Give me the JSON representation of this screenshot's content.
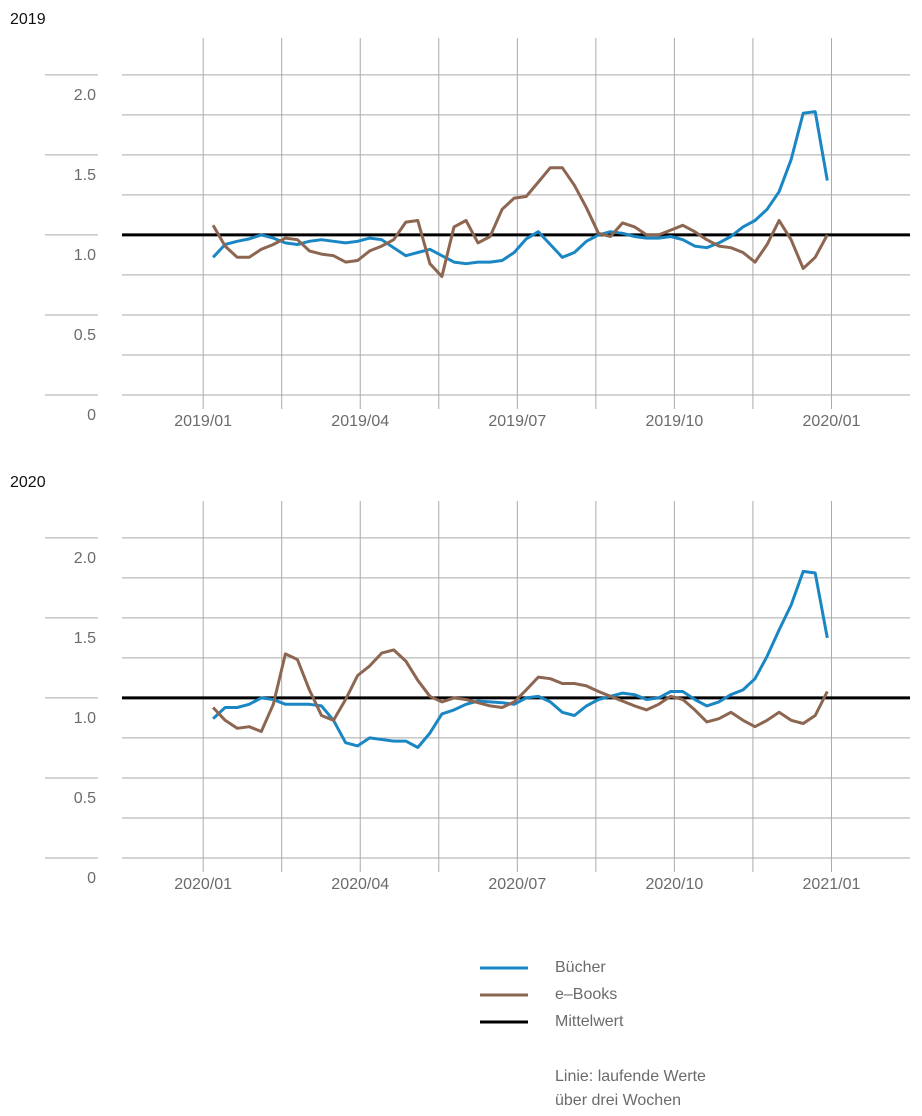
{
  "chart_data": [
    {
      "type": "line",
      "title": "2019",
      "x": [
        1.19,
        1.42,
        1.65,
        1.88,
        2.11,
        2.34,
        2.57,
        2.8,
        3.03,
        3.26,
        3.49,
        3.72,
        3.95,
        4.18,
        4.41,
        4.64,
        4.87,
        5.1,
        5.33,
        5.56,
        5.79,
        6.02,
        6.25,
        6.48,
        6.71,
        6.94,
        7.17,
        7.4,
        7.63,
        7.86,
        8.09,
        8.32,
        8.55,
        8.78,
        9.01,
        9.24,
        9.47,
        9.7,
        9.93,
        10.16,
        10.39,
        10.62,
        10.85,
        11.08,
        11.31,
        11.54,
        11.77,
        12.0,
        12.23,
        12.46,
        12.69,
        12.92
      ],
      "series": [
        {
          "name": "Bücher",
          "color": "#1a87c4",
          "values": [
            0.86,
            0.94,
            0.96,
            0.975,
            1.0,
            0.98,
            0.95,
            0.94,
            0.96,
            0.97,
            0.96,
            0.95,
            0.96,
            0.98,
            0.97,
            0.92,
            0.87,
            0.89,
            0.91,
            0.87,
            0.83,
            0.82,
            0.83,
            0.83,
            0.84,
            0.89,
            0.975,
            1.02,
            0.94,
            0.86,
            0.89,
            0.96,
            1.0,
            1.02,
            1.01,
            0.99,
            0.98,
            0.98,
            0.99,
            0.97,
            0.93,
            0.92,
            0.95,
            0.99,
            1.05,
            1.09,
            1.16,
            1.27,
            1.47,
            1.76,
            1.77,
            1.34
          ]
        },
        {
          "name": "e–Books",
          "color": "#8c6650",
          "values": [
            1.06,
            0.93,
            0.86,
            0.86,
            0.91,
            0.94,
            0.98,
            0.97,
            0.9,
            0.88,
            0.87,
            0.83,
            0.84,
            0.9,
            0.93,
            0.97,
            1.08,
            1.09,
            0.82,
            0.74,
            1.05,
            1.09,
            0.95,
            0.99,
            1.16,
            1.23,
            1.24,
            1.33,
            1.42,
            1.42,
            1.31,
            1.17,
            1.01,
            0.99,
            1.075,
            1.05,
            1.0,
            1.0,
            1.03,
            1.06,
            1.02,
            0.97,
            0.93,
            0.92,
            0.89,
            0.83,
            0.94,
            1.09,
            0.97,
            0.79,
            0.86,
            1.0
          ]
        }
      ],
      "mean_line": {
        "name": "Mittelwert",
        "value": 1,
        "color": "#000000"
      },
      "xlim": [
        -0.55,
        14.5
      ],
      "xticks": [
        {
          "value": 1,
          "label": "2019/01"
        },
        {
          "value": 4,
          "label": "2019/04"
        },
        {
          "value": 7,
          "label": "2019/07"
        },
        {
          "value": 10,
          "label": "2019/10"
        },
        {
          "value": 13,
          "label": "2020/01"
        }
      ],
      "xminor": [
        2.5,
        5.5,
        8.5,
        11.5
      ],
      "ylim": [
        0,
        2.23
      ],
      "yticks": [
        0,
        0.5,
        {
          "value": 1,
          "label": "1.0"
        },
        1.5,
        {
          "value": 2,
          "label": "2.0"
        }
      ],
      "yminor": [
        0.25,
        0.75,
        1.25,
        1.75
      ],
      "grid": true
    },
    {
      "type": "line",
      "title": "2020",
      "x": [
        1.19,
        1.42,
        1.65,
        1.88,
        2.11,
        2.34,
        2.57,
        2.8,
        3.03,
        3.26,
        3.49,
        3.72,
        3.95,
        4.18,
        4.41,
        4.64,
        4.87,
        5.1,
        5.33,
        5.56,
        5.79,
        6.02,
        6.25,
        6.48,
        6.71,
        6.94,
        7.17,
        7.4,
        7.63,
        7.86,
        8.09,
        8.32,
        8.55,
        8.78,
        9.01,
        9.24,
        9.47,
        9.7,
        9.93,
        10.16,
        10.39,
        10.62,
        10.85,
        11.08,
        11.31,
        11.54,
        11.77,
        12.0,
        12.23,
        12.46,
        12.69,
        12.92
      ],
      "series": [
        {
          "name": "Bücher",
          "color": "#1a87c4",
          "values": [
            0.87,
            0.94,
            0.94,
            0.96,
            1.0,
            0.99,
            0.96,
            0.96,
            0.96,
            0.95,
            0.86,
            0.72,
            0.7,
            0.75,
            0.74,
            0.73,
            0.73,
            0.69,
            0.78,
            0.9,
            0.925,
            0.96,
            0.98,
            0.975,
            0.97,
            0.96,
            1.0,
            1.01,
            0.975,
            0.91,
            0.89,
            0.95,
            0.99,
            1.01,
            1.03,
            1.02,
            0.99,
            1.0,
            1.04,
            1.04,
            0.99,
            0.95,
            0.975,
            1.02,
            1.05,
            1.12,
            1.26,
            1.425,
            1.58,
            1.79,
            1.78,
            1.375
          ]
        },
        {
          "name": "e–Books",
          "color": "#8c6650",
          "values": [
            0.94,
            0.86,
            0.81,
            0.82,
            0.79,
            0.96,
            1.275,
            1.24,
            1.05,
            0.89,
            0.86,
            0.99,
            1.14,
            1.2,
            1.28,
            1.3,
            1.23,
            1.11,
            1.01,
            0.975,
            1.0,
            0.99,
            0.97,
            0.95,
            0.94,
            0.975,
            1.05,
            1.13,
            1.12,
            1.09,
            1.09,
            1.075,
            1.04,
            1.01,
            0.98,
            0.95,
            0.925,
            0.96,
            1.01,
            0.99,
            0.925,
            0.85,
            0.87,
            0.91,
            0.86,
            0.82,
            0.86,
            0.91,
            0.86,
            0.84,
            0.89,
            1.04
          ]
        }
      ],
      "mean_line": {
        "name": "Mittelwert",
        "value": 1,
        "color": "#000000"
      },
      "xlim": [
        -0.55,
        14.5
      ],
      "xticks": [
        {
          "value": 1,
          "label": "2020/01"
        },
        {
          "value": 4,
          "label": "2020/04"
        },
        {
          "value": 7,
          "label": "2020/07"
        },
        {
          "value": 10,
          "label": "2020/10"
        },
        {
          "value": 13,
          "label": "2021/01"
        }
      ],
      "xminor": [
        2.5,
        5.5,
        8.5,
        11.5
      ],
      "ylim": [
        0,
        2.23
      ],
      "yticks": [
        0,
        0.5,
        {
          "value": 1,
          "label": "1.0"
        },
        1.5,
        {
          "value": 2,
          "label": "2.0"
        }
      ],
      "yminor": [
        0.25,
        0.75,
        1.25,
        1.75
      ],
      "grid": true
    }
  ],
  "note": [
    "Linie: laufende Werte",
    "über drei Wochen"
  ]
}
